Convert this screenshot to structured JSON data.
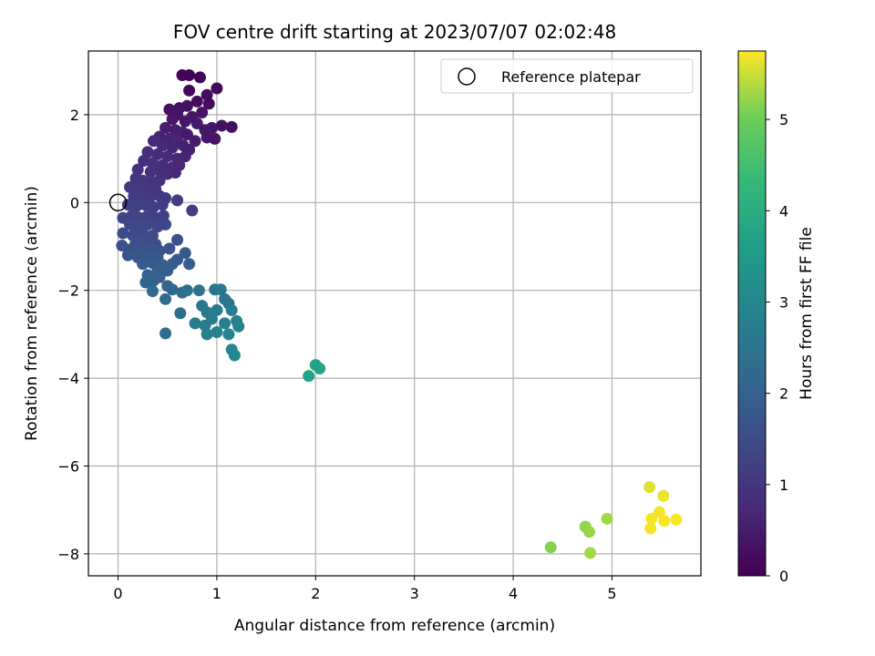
{
  "chart_data": {
    "type": "scatter",
    "title": "FOV centre drift starting at 2023/07/07 02:02:48",
    "xlabel": "Angular distance from reference (arcmin)",
    "ylabel": "Rotation from reference (arcmin)",
    "xlim": [
      -0.3,
      5.9
    ],
    "ylim": [
      -8.5,
      3.45
    ],
    "xticks": [
      0,
      1,
      2,
      3,
      4,
      5
    ],
    "yticks": [
      -8,
      -6,
      -4,
      -2,
      0,
      2
    ],
    "grid": true,
    "legend": {
      "placement": "top-right",
      "entries": [
        {
          "label": "Reference platepar",
          "marker": "open-circle"
        }
      ]
    },
    "reference_point": {
      "x": 0,
      "y": 0
    },
    "colorbar": {
      "label": "Hours from first FF file",
      "colormap": "viridis",
      "range": [
        0,
        5.75
      ],
      "ticks": [
        0,
        1,
        2,
        3,
        4,
        5
      ]
    },
    "points": [
      {
        "x": 0.65,
        "y": 2.9,
        "c": 0.05
      },
      {
        "x": 0.72,
        "y": 2.9,
        "c": 0.08
      },
      {
        "x": 0.83,
        "y": 2.85,
        "c": 0.1
      },
      {
        "x": 0.72,
        "y": 2.55,
        "c": 0.12
      },
      {
        "x": 1.0,
        "y": 2.6,
        "c": 0.15
      },
      {
        "x": 0.9,
        "y": 2.45,
        "c": 0.18
      },
      {
        "x": 0.8,
        "y": 2.3,
        "c": 0.2
      },
      {
        "x": 0.92,
        "y": 2.25,
        "c": 0.22
      },
      {
        "x": 0.7,
        "y": 2.2,
        "c": 0.25
      },
      {
        "x": 0.62,
        "y": 2.15,
        "c": 0.28
      },
      {
        "x": 0.52,
        "y": 2.12,
        "c": 0.3
      },
      {
        "x": 0.85,
        "y": 2.05,
        "c": 0.32
      },
      {
        "x": 0.6,
        "y": 2.0,
        "c": 0.35
      },
      {
        "x": 0.75,
        "y": 1.95,
        "c": 0.38
      },
      {
        "x": 0.55,
        "y": 1.9,
        "c": 0.4
      },
      {
        "x": 0.68,
        "y": 1.85,
        "c": 0.42
      },
      {
        "x": 0.8,
        "y": 1.8,
        "c": 0.45
      },
      {
        "x": 1.05,
        "y": 1.75,
        "c": 0.3
      },
      {
        "x": 1.15,
        "y": 1.72,
        "c": 0.25
      },
      {
        "x": 0.95,
        "y": 1.7,
        "c": 0.35
      },
      {
        "x": 0.88,
        "y": 1.65,
        "c": 0.4
      },
      {
        "x": 0.48,
        "y": 1.7,
        "c": 0.5
      },
      {
        "x": 0.58,
        "y": 1.65,
        "c": 0.52
      },
      {
        "x": 0.65,
        "y": 1.6,
        "c": 0.55
      },
      {
        "x": 0.7,
        "y": 1.55,
        "c": 0.45
      },
      {
        "x": 0.9,
        "y": 1.48,
        "c": 0.4
      },
      {
        "x": 0.98,
        "y": 1.45,
        "c": 0.38
      },
      {
        "x": 0.78,
        "y": 1.4,
        "c": 0.5
      },
      {
        "x": 0.42,
        "y": 1.5,
        "c": 0.62
      },
      {
        "x": 0.52,
        "y": 1.45,
        "c": 0.65
      },
      {
        "x": 0.6,
        "y": 1.4,
        "c": 0.7
      },
      {
        "x": 0.36,
        "y": 1.4,
        "c": 0.75
      },
      {
        "x": 0.45,
        "y": 1.3,
        "c": 0.72
      },
      {
        "x": 0.55,
        "y": 1.25,
        "c": 0.68
      },
      {
        "x": 0.66,
        "y": 1.3,
        "c": 0.6
      },
      {
        "x": 0.72,
        "y": 1.2,
        "c": 0.58
      },
      {
        "x": 0.3,
        "y": 1.15,
        "c": 0.82
      },
      {
        "x": 0.4,
        "y": 1.1,
        "c": 0.8
      },
      {
        "x": 0.5,
        "y": 1.05,
        "c": 0.78
      },
      {
        "x": 0.6,
        "y": 1.0,
        "c": 0.72
      },
      {
        "x": 0.68,
        "y": 1.05,
        "c": 0.65
      },
      {
        "x": 0.26,
        "y": 0.95,
        "c": 0.9
      },
      {
        "x": 0.35,
        "y": 0.9,
        "c": 0.88
      },
      {
        "x": 0.45,
        "y": 0.85,
        "c": 0.85
      },
      {
        "x": 0.55,
        "y": 0.8,
        "c": 0.78
      },
      {
        "x": 0.62,
        "y": 0.85,
        "c": 0.7
      },
      {
        "x": 0.2,
        "y": 0.75,
        "c": 0.95
      },
      {
        "x": 0.33,
        "y": 0.7,
        "c": 0.92
      },
      {
        "x": 0.42,
        "y": 0.72,
        "c": 0.88
      },
      {
        "x": 0.5,
        "y": 0.65,
        "c": 0.82
      },
      {
        "x": 0.58,
        "y": 0.68,
        "c": 0.75
      },
      {
        "x": 0.18,
        "y": 0.55,
        "c": 1.0
      },
      {
        "x": 0.25,
        "y": 0.5,
        "c": 1.02
      },
      {
        "x": 0.34,
        "y": 0.48,
        "c": 0.98
      },
      {
        "x": 0.42,
        "y": 0.5,
        "c": 0.94
      },
      {
        "x": 0.12,
        "y": 0.35,
        "c": 1.05
      },
      {
        "x": 0.2,
        "y": 0.3,
        "c": 1.08
      },
      {
        "x": 0.28,
        "y": 0.32,
        "c": 1.05
      },
      {
        "x": 0.38,
        "y": 0.3,
        "c": 1.0
      },
      {
        "x": 0.16,
        "y": 0.15,
        "c": 1.12
      },
      {
        "x": 0.24,
        "y": 0.1,
        "c": 1.15
      },
      {
        "x": 0.32,
        "y": 0.12,
        "c": 1.1
      },
      {
        "x": 0.42,
        "y": 0.15,
        "c": 1.08
      },
      {
        "x": 0.48,
        "y": 0.1,
        "c": 1.05
      },
      {
        "x": 0.6,
        "y": 0.05,
        "c": 1.1
      },
      {
        "x": 0.1,
        "y": -0.05,
        "c": 1.2
      },
      {
        "x": 0.18,
        "y": -0.1,
        "c": 1.22
      },
      {
        "x": 0.27,
        "y": -0.05,
        "c": 1.18
      },
      {
        "x": 0.36,
        "y": -0.1,
        "c": 1.2
      },
      {
        "x": 0.45,
        "y": -0.05,
        "c": 1.15
      },
      {
        "x": 0.75,
        "y": -0.18,
        "c": 1.2
      },
      {
        "x": 0.05,
        "y": -0.35,
        "c": 1.3
      },
      {
        "x": 0.14,
        "y": -0.3,
        "c": 1.32
      },
      {
        "x": 0.22,
        "y": -0.35,
        "c": 1.3
      },
      {
        "x": 0.3,
        "y": -0.3,
        "c": 1.28
      },
      {
        "x": 0.38,
        "y": -0.35,
        "c": 1.25
      },
      {
        "x": 0.46,
        "y": -0.3,
        "c": 1.25
      },
      {
        "x": 0.12,
        "y": -0.5,
        "c": 1.4
      },
      {
        "x": 0.2,
        "y": -0.55,
        "c": 1.42
      },
      {
        "x": 0.3,
        "y": -0.5,
        "c": 1.4
      },
      {
        "x": 0.4,
        "y": -0.55,
        "c": 1.38
      },
      {
        "x": 0.48,
        "y": -0.5,
        "c": 1.35
      },
      {
        "x": 0.05,
        "y": -0.7,
        "c": 1.5
      },
      {
        "x": 0.15,
        "y": -0.75,
        "c": 1.5
      },
      {
        "x": 0.25,
        "y": -0.7,
        "c": 1.48
      },
      {
        "x": 0.35,
        "y": -0.75,
        "c": 1.45
      },
      {
        "x": 0.18,
        "y": -0.9,
        "c": 1.55
      },
      {
        "x": 0.28,
        "y": -0.9,
        "c": 1.55
      },
      {
        "x": 0.38,
        "y": -0.95,
        "c": 1.52
      },
      {
        "x": 0.6,
        "y": -0.85,
        "c": 1.6
      },
      {
        "x": 0.04,
        "y": -0.98,
        "c": 1.6
      },
      {
        "x": 0.14,
        "y": -1.05,
        "c": 1.6
      },
      {
        "x": 0.24,
        "y": -1.1,
        "c": 1.62
      },
      {
        "x": 0.34,
        "y": -1.05,
        "c": 1.65
      },
      {
        "x": 0.42,
        "y": -1.1,
        "c": 1.65
      },
      {
        "x": 0.52,
        "y": -1.05,
        "c": 1.7
      },
      {
        "x": 0.1,
        "y": -1.2,
        "c": 1.7
      },
      {
        "x": 0.2,
        "y": -1.25,
        "c": 1.72
      },
      {
        "x": 0.3,
        "y": -1.2,
        "c": 1.75
      },
      {
        "x": 0.4,
        "y": -1.25,
        "c": 1.75
      },
      {
        "x": 0.68,
        "y": -1.15,
        "c": 1.8
      },
      {
        "x": 0.6,
        "y": -1.3,
        "c": 1.82
      },
      {
        "x": 0.25,
        "y": -1.4,
        "c": 1.85
      },
      {
        "x": 0.35,
        "y": -1.38,
        "c": 1.85
      },
      {
        "x": 0.45,
        "y": -1.42,
        "c": 1.88
      },
      {
        "x": 0.55,
        "y": -1.4,
        "c": 1.9
      },
      {
        "x": 0.72,
        "y": -1.4,
        "c": 1.9
      },
      {
        "x": 0.4,
        "y": -1.55,
        "c": 1.95
      },
      {
        "x": 0.5,
        "y": -1.55,
        "c": 1.95
      },
      {
        "x": 0.3,
        "y": -1.65,
        "c": 2.0
      },
      {
        "x": 0.42,
        "y": -1.7,
        "c": 2.0
      },
      {
        "x": 0.28,
        "y": -1.82,
        "c": 2.05
      },
      {
        "x": 0.36,
        "y": -1.78,
        "c": 2.05
      },
      {
        "x": 0.5,
        "y": -1.9,
        "c": 2.1
      },
      {
        "x": 0.55,
        "y": -1.98,
        "c": 2.15
      },
      {
        "x": 0.65,
        "y": -2.05,
        "c": 2.2
      },
      {
        "x": 0.35,
        "y": -2.02,
        "c": 2.15
      },
      {
        "x": 0.48,
        "y": -2.2,
        "c": 2.25
      },
      {
        "x": 0.7,
        "y": -2.0,
        "c": 2.4
      },
      {
        "x": 0.82,
        "y": -2.0,
        "c": 2.45
      },
      {
        "x": 0.98,
        "y": -1.98,
        "c": 2.55
      },
      {
        "x": 1.04,
        "y": -1.98,
        "c": 2.6
      },
      {
        "x": 1.08,
        "y": -2.2,
        "c": 2.5
      },
      {
        "x": 1.12,
        "y": -2.3,
        "c": 2.55
      },
      {
        "x": 0.85,
        "y": -2.35,
        "c": 2.6
      },
      {
        "x": 0.9,
        "y": -2.5,
        "c": 2.65
      },
      {
        "x": 1.0,
        "y": -2.45,
        "c": 2.7
      },
      {
        "x": 1.15,
        "y": -2.45,
        "c": 2.75
      },
      {
        "x": 0.63,
        "y": -2.52,
        "c": 2.35
      },
      {
        "x": 0.78,
        "y": -2.75,
        "c": 2.7
      },
      {
        "x": 0.88,
        "y": -2.8,
        "c": 2.75
      },
      {
        "x": 0.95,
        "y": -2.65,
        "c": 2.8
      },
      {
        "x": 1.08,
        "y": -2.75,
        "c": 2.8
      },
      {
        "x": 1.2,
        "y": -2.7,
        "c": 2.85
      },
      {
        "x": 1.22,
        "y": -2.82,
        "c": 2.9
      },
      {
        "x": 0.9,
        "y": -3.0,
        "c": 2.85
      },
      {
        "x": 1.0,
        "y": -2.95,
        "c": 2.9
      },
      {
        "x": 1.12,
        "y": -3.0,
        "c": 2.95
      },
      {
        "x": 0.48,
        "y": -2.98,
        "c": 2.3
      },
      {
        "x": 1.15,
        "y": -3.35,
        "c": 3.0
      },
      {
        "x": 1.18,
        "y": -3.48,
        "c": 3.05
      },
      {
        "x": 2.0,
        "y": -3.7,
        "c": 3.7
      },
      {
        "x": 2.04,
        "y": -3.78,
        "c": 3.75
      },
      {
        "x": 1.93,
        "y": -3.95,
        "c": 3.7
      },
      {
        "x": 5.38,
        "y": -6.48,
        "c": 5.6
      },
      {
        "x": 5.52,
        "y": -6.68,
        "c": 5.65
      },
      {
        "x": 5.48,
        "y": -7.05,
        "c": 5.7
      },
      {
        "x": 5.4,
        "y": -7.2,
        "c": 5.72
      },
      {
        "x": 5.53,
        "y": -7.25,
        "c": 5.72
      },
      {
        "x": 5.65,
        "y": -7.22,
        "c": 5.73
      },
      {
        "x": 5.39,
        "y": -7.42,
        "c": 5.7
      },
      {
        "x": 4.95,
        "y": -7.2,
        "c": 5.3
      },
      {
        "x": 4.73,
        "y": -7.38,
        "c": 5.2
      },
      {
        "x": 4.77,
        "y": -7.5,
        "c": 5.25
      },
      {
        "x": 4.38,
        "y": -7.85,
        "c": 5.15
      },
      {
        "x": 4.78,
        "y": -7.98,
        "c": 5.3
      }
    ]
  }
}
